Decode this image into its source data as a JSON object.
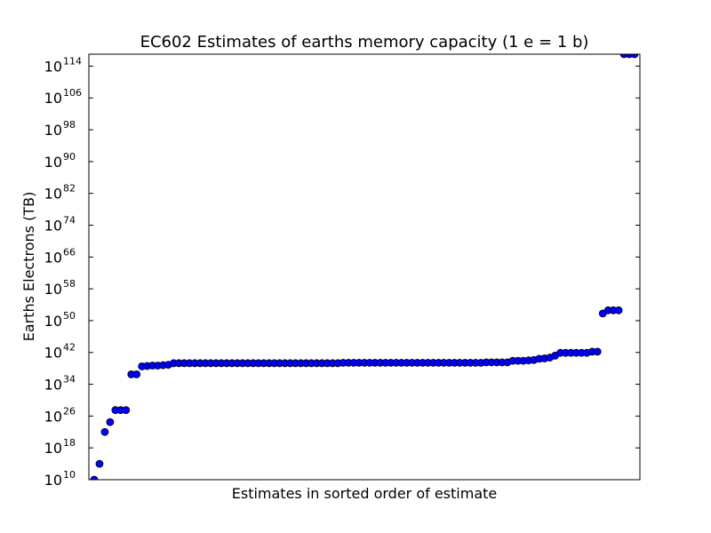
{
  "chart_data": {
    "type": "scatter",
    "title": "EC602 Estimates of earths memory capacity (1 e = 1 b)",
    "xlabel": "Estimates in sorted order of estimate",
    "ylabel": "Earths Electrons (TB)",
    "yscale": "log10",
    "ylim_exponent": [
      10,
      117
    ],
    "y_tick_exponents": [
      10,
      18,
      26,
      34,
      42,
      50,
      58,
      66,
      74,
      82,
      90,
      98,
      106,
      114
    ],
    "y_tick_base": "10",
    "x_ticks": "none",
    "grid": false,
    "legend": "none",
    "marker_color": "#0000ff",
    "point_count": 103,
    "log10_values": [
      10,
      14,
      22,
      24.5,
      27.5,
      27.5,
      27.5,
      36.5,
      36.5,
      38.5,
      38.6,
      38.7,
      38.7,
      38.8,
      38.9,
      39.3,
      39.3,
      39.3,
      39.3,
      39.3,
      39.3,
      39.3,
      39.3,
      39.3,
      39.3,
      39.3,
      39.3,
      39.3,
      39.3,
      39.3,
      39.3,
      39.3,
      39.3,
      39.3,
      39.3,
      39.3,
      39.3,
      39.3,
      39.3,
      39.3,
      39.3,
      39.3,
      39.3,
      39.3,
      39.3,
      39.3,
      39.3,
      39.4,
      39.4,
      39.4,
      39.4,
      39.4,
      39.4,
      39.4,
      39.4,
      39.4,
      39.4,
      39.4,
      39.4,
      39.4,
      39.4,
      39.4,
      39.4,
      39.4,
      39.4,
      39.4,
      39.4,
      39.4,
      39.4,
      39.4,
      39.4,
      39.4,
      39.4,
      39.4,
      39.5,
      39.5,
      39.5,
      39.5,
      39.5,
      39.9,
      39.9,
      39.9,
      40.0,
      40.1,
      40.4,
      40.5,
      40.7,
      41.2,
      41.9,
      41.9,
      41.9,
      41.9,
      41.9,
      41.9,
      42.2,
      42.2,
      51.8,
      52.6,
      52.6,
      52.6,
      117,
      117,
      117
    ]
  }
}
